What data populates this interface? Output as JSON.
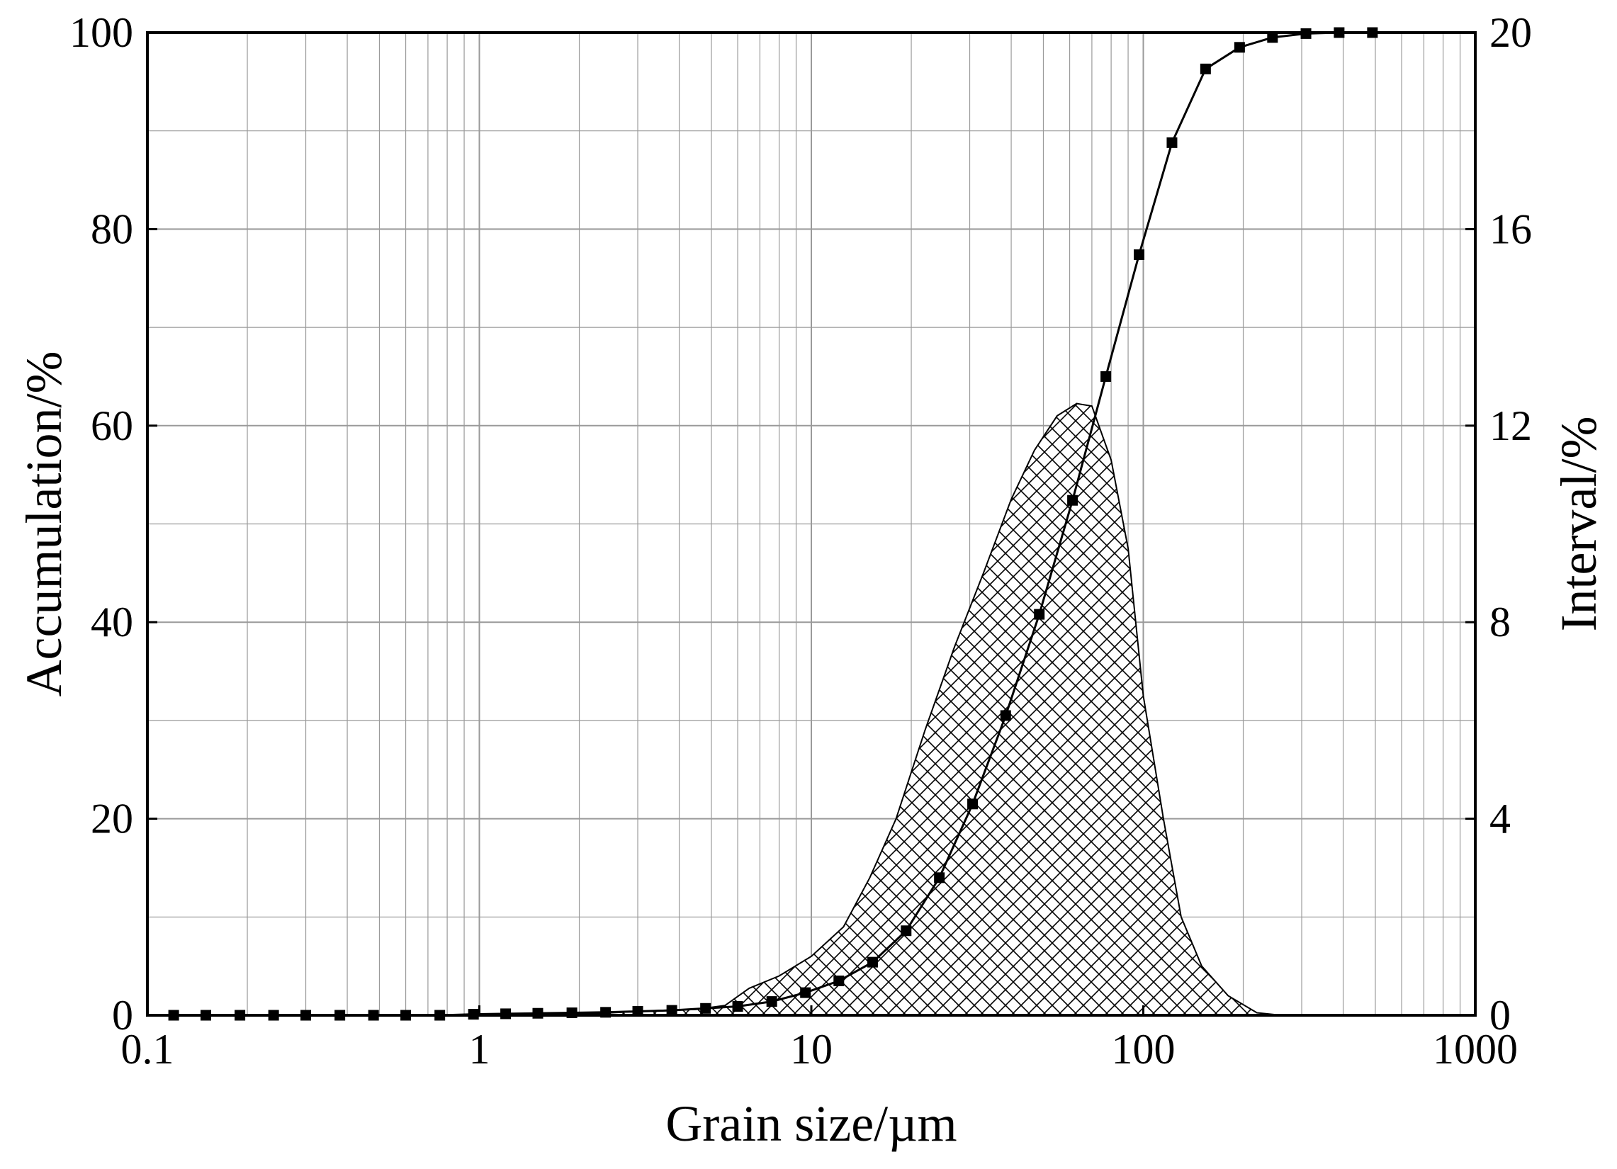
{
  "chart_data": {
    "type": "line",
    "title": "",
    "xlabel": "Grain size/µm",
    "ylabel": "Accumulation/%",
    "y2label": "Interval/%",
    "xscale": "log",
    "xlim": [
      0.1,
      1000
    ],
    "ylim": [
      0,
      100
    ],
    "y2lim": [
      0,
      20
    ],
    "xticks": [
      {
        "v": 0.1,
        "label": "0.1"
      },
      {
        "v": 1,
        "label": "1"
      },
      {
        "v": 10,
        "label": "10"
      },
      {
        "v": 100,
        "label": "100"
      },
      {
        "v": 1000,
        "label": "1000"
      }
    ],
    "yticks": [
      {
        "v": 0,
        "label": "0"
      },
      {
        "v": 20,
        "label": "20"
      },
      {
        "v": 40,
        "label": "40"
      },
      {
        "v": 60,
        "label": "60"
      },
      {
        "v": 80,
        "label": "80"
      },
      {
        "v": 100,
        "label": "100"
      }
    ],
    "y2ticks": [
      {
        "v": 0,
        "label": "0"
      },
      {
        "v": 4,
        "label": "4"
      },
      {
        "v": 8,
        "label": "8"
      },
      {
        "v": 12,
        "label": "12"
      },
      {
        "v": 16,
        "label": "16"
      },
      {
        "v": 20,
        "label": "20"
      }
    ],
    "grid": true,
    "colors": {
      "line": "#000000",
      "grid": "#9a9a9a",
      "hatch": "#000000"
    },
    "series": [
      {
        "kind": "line-with-square-markers",
        "axis": "left",
        "x": [
          0.12,
          0.15,
          0.19,
          0.24,
          0.3,
          0.38,
          0.48,
          0.6,
          0.76,
          0.96,
          1.2,
          1.5,
          1.9,
          2.4,
          3.0,
          3.8,
          4.8,
          6.0,
          7.6,
          9.6,
          12.1,
          15.3,
          19.3,
          24.3,
          30.6,
          38.5,
          48.6,
          61.2,
          77.1,
          97.1,
          122,
          154,
          195,
          245,
          309,
          389,
          490
        ],
        "y": [
          0,
          0,
          0,
          0,
          0,
          0,
          0,
          0,
          0,
          0.1,
          0.15,
          0.2,
          0.25,
          0.3,
          0.4,
          0.5,
          0.7,
          0.9,
          1.4,
          2.3,
          3.5,
          5.4,
          8.6,
          14.0,
          21.5,
          30.5,
          40.8,
          52.4,
          65.0,
          77.4,
          88.8,
          96.3,
          98.5,
          99.5,
          99.9,
          100,
          100
        ]
      },
      {
        "kind": "hatched-area",
        "axis": "right",
        "x": [
          0.1,
          1.6,
          2.5,
          3.5,
          4.5,
          5.5,
          6.5,
          8,
          10,
          12.5,
          15,
          18,
          22,
          27,
          33,
          40,
          47,
          55,
          63,
          70,
          80,
          90,
          100,
          115,
          130,
          150,
          180,
          220,
          260,
          320,
          500
        ],
        "y": [
          0,
          0,
          0.05,
          0.1,
          0.12,
          0.2,
          0.55,
          0.8,
          1.2,
          1.8,
          2.8,
          4.0,
          5.8,
          7.5,
          9.0,
          10.5,
          11.5,
          12.2,
          12.45,
          12.4,
          11.3,
          9.5,
          6.5,
          4.0,
          2.0,
          1.0,
          0.4,
          0.05,
          0,
          0,
          0
        ]
      }
    ]
  }
}
